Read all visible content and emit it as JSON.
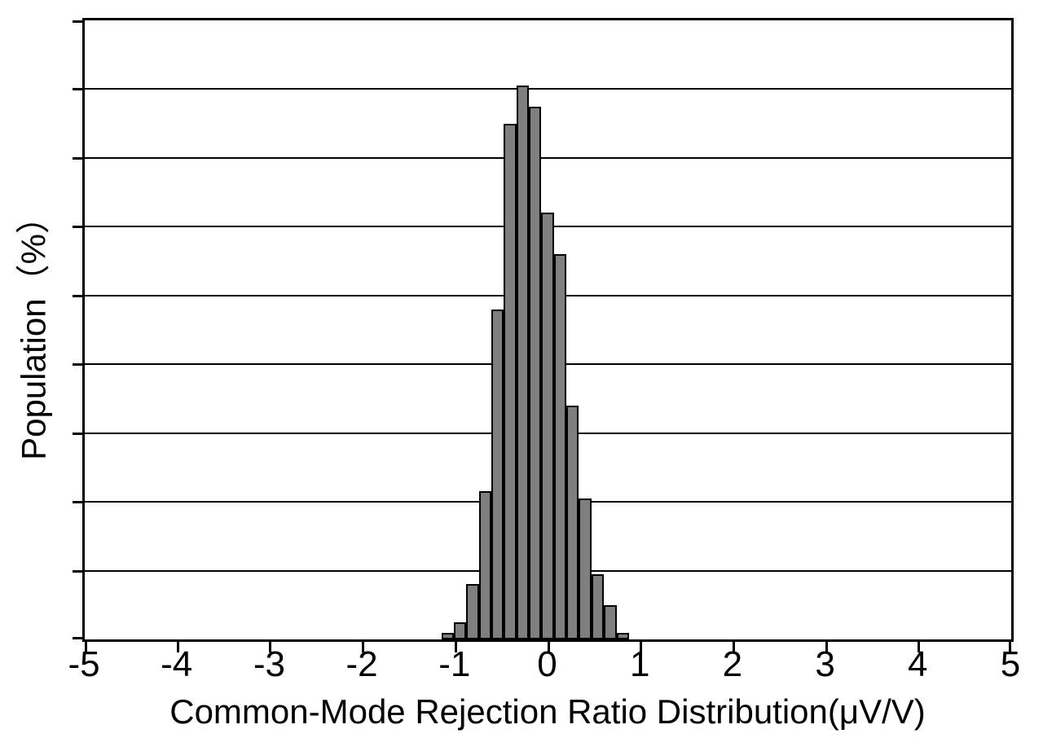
{
  "figure": {
    "background": "#ffffff",
    "axis_color": "#000000"
  },
  "chart_data": {
    "type": "bar",
    "subtype": "histogram",
    "title": "",
    "xlabel": "Common-Mode Rejection Ratio Distribution(μV/V)",
    "ylabel": "Population（%）",
    "xlim": [
      -5,
      5
    ],
    "x_ticks": [
      "-5",
      "-4",
      "-3",
      "-2",
      "-1",
      "0",
      "1",
      "2",
      "3",
      "4",
      "5"
    ],
    "y_axis": {
      "min": 0,
      "max_estimate_percent": 18,
      "gridline_divisions": 9,
      "gridline_step_percent_estimate": 2,
      "tick_labels_visible": false
    },
    "grid": "horizontal",
    "legend": "none",
    "bar_fill": "#7f7f7f",
    "bar_border": "#000000",
    "bins": {
      "start": -1.14,
      "width": 0.135,
      "count": 15
    },
    "bin_centers": [
      -1.07,
      -0.94,
      -0.8,
      -0.67,
      -0.53,
      -0.4,
      -0.26,
      -0.13,
      0.01,
      0.14,
      0.28,
      0.41,
      0.55,
      0.68,
      0.82
    ],
    "values_percent": [
      0.2,
      0.5,
      1.6,
      4.3,
      9.6,
      15.0,
      16.1,
      15.5,
      12.4,
      11.2,
      6.8,
      4.1,
      1.9,
      1.0,
      0.2
    ]
  }
}
